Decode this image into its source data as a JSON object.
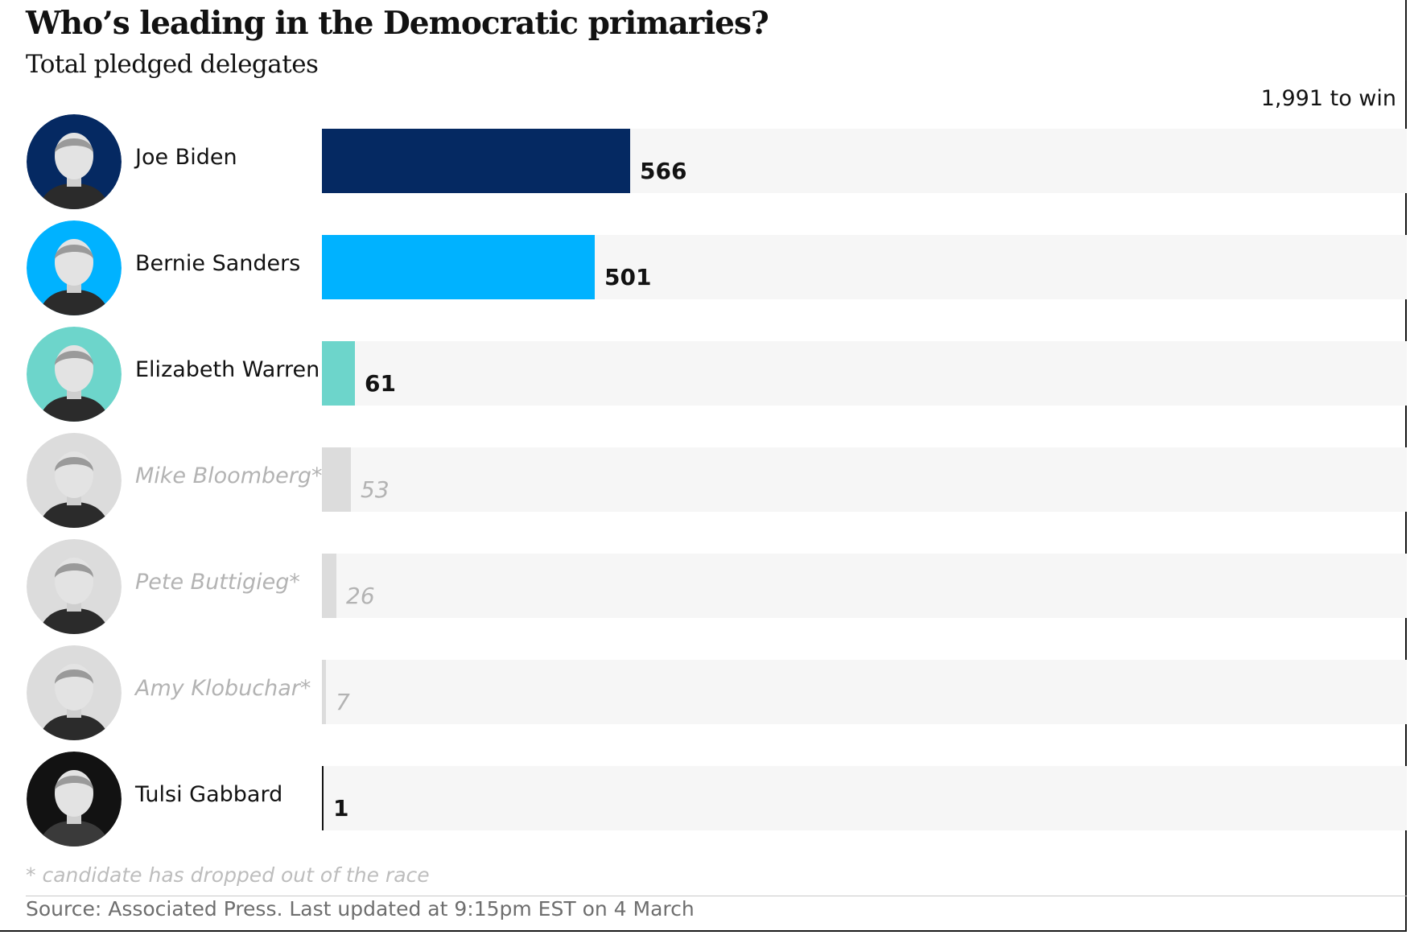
{
  "chart_data": {
    "type": "bar",
    "orientation": "horizontal",
    "title": "Who’s leading in the Democratic primaries?",
    "subtitle": "Total pledged delegates",
    "target_label": "1,991 to win",
    "target_value": 1991,
    "categories": [
      "Joe Biden",
      "Bernie Sanders",
      "Elizabeth Warren",
      "Mike Bloomberg*",
      "Pete Buttigieg*",
      "Amy Klobuchar*",
      "Tulsi Gabbard"
    ],
    "values": [
      566,
      501,
      61,
      53,
      26,
      7,
      1
    ],
    "value_labels": [
      "566",
      "501",
      "61",
      "53",
      "26",
      "7",
      "1"
    ],
    "dropped_out": [
      false,
      false,
      false,
      true,
      true,
      true,
      false
    ],
    "colors": [
      "#052962",
      "#00b2ff",
      "#6dd5cb",
      "#dcdcdc",
      "#dcdcdc",
      "#dcdcdc",
      "#121212"
    ],
    "avatar_bg": [
      "#052962",
      "#00b2ff",
      "#6dd5cb",
      "#dcdcdc",
      "#dcdcdc",
      "#dcdcdc",
      "#121212"
    ],
    "xlim": [
      0,
      1991
    ],
    "footnote": "* candidate has dropped out of the race",
    "source": "Source: Associated Press. Last updated at 9:15pm EST on 4 March"
  }
}
